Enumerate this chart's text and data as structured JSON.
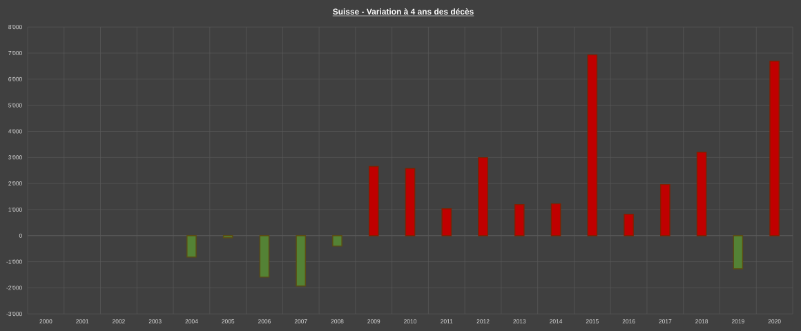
{
  "chart_data": {
    "type": "bar",
    "title": "Suisse - Variation à 4 ans des décès",
    "categories": [
      "2000",
      "2001",
      "2002",
      "2003",
      "2004",
      "2005",
      "2006",
      "2007",
      "2008",
      "2009",
      "2010",
      "2011",
      "2012",
      "2013",
      "2014",
      "2015",
      "2016",
      "2017",
      "2018",
      "2019",
      "2020"
    ],
    "values": [
      null,
      null,
      null,
      null,
      -820,
      -80,
      -1590,
      -1930,
      -400,
      2650,
      2570,
      1030,
      2990,
      1190,
      1220,
      6930,
      820,
      1960,
      3200,
      -1270,
      6690
    ],
    "colors": [
      "#548235",
      "#548235",
      "#548235",
      "#548235",
      "#548235",
      "#548235",
      "#548235",
      "#548235",
      "#548235",
      "#c00000",
      "#c00000",
      "#c00000",
      "#c00000",
      "#c00000",
      "#c00000",
      "#c00000",
      "#c00000",
      "#c00000",
      "#c00000",
      "#548235",
      "#c00000"
    ],
    "ylim": [
      -3000,
      8000
    ],
    "yticks": [
      {
        "value": -3000,
        "label": "-3'000"
      },
      {
        "value": -2000,
        "label": "-2'000"
      },
      {
        "value": -1000,
        "label": "-1'000"
      },
      0,
      {
        "value": 1000,
        "label": "1'000"
      },
      {
        "value": 2000,
        "label": "2'000"
      },
      {
        "value": 3000,
        "label": "3'000"
      },
      {
        "value": 4000,
        "label": "4'000"
      },
      {
        "value": 5000,
        "label": "5'000"
      },
      {
        "value": 6000,
        "label": "6'000"
      },
      {
        "value": 7000,
        "label": "7'000"
      },
      {
        "value": 8000,
        "label": "8'000"
      }
    ],
    "grid": true
  }
}
